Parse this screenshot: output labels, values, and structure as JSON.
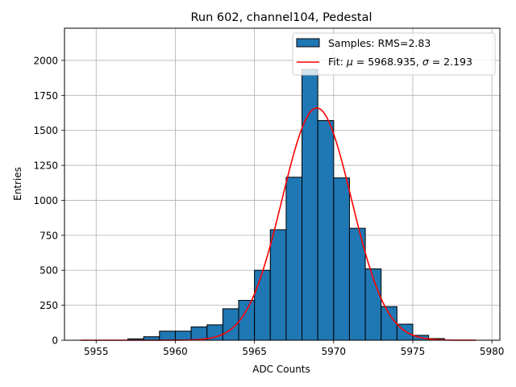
{
  "chart_data": {
    "type": "bar",
    "title": "Run 602, channel104, Pedestal",
    "xlabel": "ADC Counts",
    "ylabel": "Entries",
    "xlim": [
      5953,
      5980.5
    ],
    "ylim": [
      0,
      2230
    ],
    "xticks": [
      5955,
      5960,
      5965,
      5970,
      5975,
      5980
    ],
    "yticks": [
      0,
      250,
      500,
      750,
      1000,
      1250,
      1500,
      1750,
      2000
    ],
    "grid": true,
    "bin_width": 1,
    "series": [
      {
        "name": "Samples: RMS=2.83",
        "kind": "histogram",
        "color": "#1f77b4",
        "edgecolor": "#000000",
        "bin_left_edges": [
          5957,
          5958,
          5959,
          5960,
          5961,
          5962,
          5963,
          5964,
          5965,
          5966,
          5967,
          5968,
          5969,
          5970,
          5971,
          5972,
          5973,
          5974,
          5975,
          5976
        ],
        "values": [
          10,
          25,
          65,
          65,
          95,
          110,
          225,
          285,
          500,
          790,
          1165,
          1935,
          1570,
          1160,
          800,
          510,
          240,
          115,
          35,
          12
        ]
      },
      {
        "name": "Fit: μ = 5968.935, σ = 2.193",
        "kind": "gaussian",
        "color": "#ff0000",
        "mu": 5968.935,
        "sigma": 2.193,
        "amplitude": 1660,
        "x_range": [
          5954,
          5979
        ]
      }
    ],
    "legend": {
      "placement": "top-right",
      "entries": [
        {
          "label": "Samples: RMS=2.83",
          "marker": "patch"
        },
        {
          "label": "Fit: ",
          "math_mu": "μ",
          "mid": " = 5968.935, ",
          "math_sigma": "σ",
          "tail": " = 2.193",
          "marker": "line"
        }
      ]
    }
  }
}
